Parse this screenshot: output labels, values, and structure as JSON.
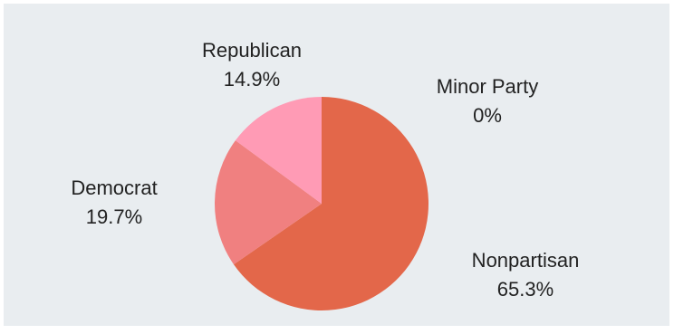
{
  "chart_data": {
    "type": "pie",
    "categories": [
      "Nonpartisan",
      "Democrat",
      "Republican",
      "Minor Party"
    ],
    "values": [
      65.3,
      19.7,
      14.9,
      0
    ],
    "value_labels": [
      "65.3%",
      "19.7%",
      "14.9%",
      "0%"
    ],
    "colors": [
      "#e3674a",
      "#f08080",
      "#ff9bb5",
      "#c9c9c9"
    ],
    "background": "#e9edf0",
    "start_angle": "12 o'clock, clockwise"
  }
}
